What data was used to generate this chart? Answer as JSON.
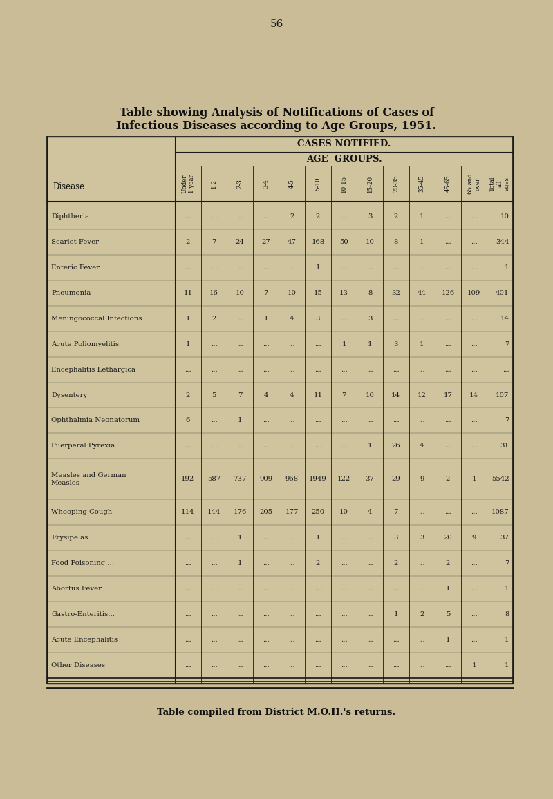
{
  "title_line1": "Table showing Analysis of Notifications of Cases of",
  "title_line2": "Infectious Diseases according to Age Groups, 1951.",
  "subtitle": "CASES NOTIFIED.",
  "subsubtitle": "AGE  GROUPS.",
  "footer": "Table compiled from District M.O.H.'s returns.",
  "page_number": "56",
  "col_headers": [
    "Under\n1 year",
    "1-2",
    "2-3",
    "3-4",
    "4-5",
    "5-10",
    "10-15",
    "15-20",
    "20-35",
    "35-45",
    "45-65",
    "65 and\nover",
    "Total\nall\nages"
  ],
  "diseases": [
    "Diphtheria",
    "Scarlet Fever",
    "Enteric Fever",
    "Pneumonia",
    "Meningococcal Infections",
    "Acute Poliomyelitis",
    "Encephalitis Lethargica",
    "Dysentery",
    "Ophthalmia Neonatorum",
    "Puerperal Pyrexia",
    "Measles and German\nMeasles",
    "Whooping Cough",
    "Erysipelas",
    "Food Poisoning ...",
    "Abortus Fever",
    "Gastro-Enteritis...",
    "Acute Encephalitis",
    "Other Diseases"
  ],
  "data": [
    [
      "...",
      "...",
      "...",
      "...",
      "2",
      "2",
      "...",
      "3",
      "2",
      "1",
      "...",
      "...",
      "10"
    ],
    [
      "2",
      "7",
      "24",
      "27",
      "47",
      "168",
      "50",
      "10",
      "8",
      "1",
      "...",
      "...",
      "344"
    ],
    [
      "...",
      "...",
      "...",
      "...",
      "...",
      "1",
      "...",
      "...",
      "...",
      "...",
      "...",
      "...",
      "1"
    ],
    [
      "11",
      "16",
      "10",
      "7",
      "10",
      "15",
      "13",
      "8",
      "32",
      "44",
      "126",
      "109",
      "401"
    ],
    [
      "1",
      "2",
      "...",
      "1",
      "4",
      "3",
      "...",
      "3",
      "...",
      "...",
      "...",
      "...",
      "14"
    ],
    [
      "1",
      "...",
      "...",
      "...",
      "...",
      "...",
      "1",
      "1",
      "3",
      "1",
      "...",
      "...",
      "7"
    ],
    [
      "...",
      "...",
      "...",
      "...",
      "...",
      "...",
      "...",
      "...",
      "...",
      "...",
      "...",
      "...",
      "..."
    ],
    [
      "2",
      "5",
      "7",
      "4",
      "4",
      "11",
      "7",
      "10",
      "14",
      "12",
      "17",
      "14",
      "107"
    ],
    [
      "6",
      "...",
      "1",
      "...",
      "...",
      "...",
      "...",
      "...",
      "...",
      "...",
      "...",
      "...",
      "7"
    ],
    [
      "...",
      "...",
      "...",
      "...",
      "...",
      "...",
      "...",
      "1",
      "26",
      "4",
      "...",
      "...",
      "31"
    ],
    [
      "192",
      "587",
      "737",
      "909",
      "968",
      "1949",
      "122",
      "37",
      "29",
      "9",
      "2",
      "1",
      "5542"
    ],
    [
      "114",
      "144",
      "176",
      "205",
      "177",
      "250",
      "10",
      "4",
      "7",
      "...",
      "...",
      "...",
      "1087"
    ],
    [
      "...",
      "...",
      "1",
      "...",
      "...",
      "1",
      "...",
      "...",
      "3",
      "3",
      "20",
      "9",
      "37"
    ],
    [
      "...",
      "...",
      "1",
      "...",
      "...",
      "2",
      "...",
      "...",
      "2",
      "...",
      "2",
      "...",
      "7"
    ],
    [
      "...",
      "...",
      "...",
      "...",
      "...",
      "...",
      "...",
      "...",
      "...",
      "...",
      "1",
      "...",
      "1"
    ],
    [
      "...",
      "...",
      "...",
      "...",
      "...",
      "...",
      "...",
      "...",
      "1",
      "2",
      "5",
      "...",
      "8"
    ],
    [
      "...",
      "...",
      "...",
      "...",
      "...",
      "...",
      "...",
      "...",
      "...",
      "...",
      "1",
      "...",
      "1"
    ],
    [
      "...",
      "...",
      "...",
      "...",
      "...",
      "...",
      "...",
      "...",
      "...",
      "...",
      "...",
      "1",
      "1"
    ]
  ],
  "bg_color": "#c9bc96",
  "text_color": "#1a1a1a",
  "line_color": "#1a1a1a"
}
